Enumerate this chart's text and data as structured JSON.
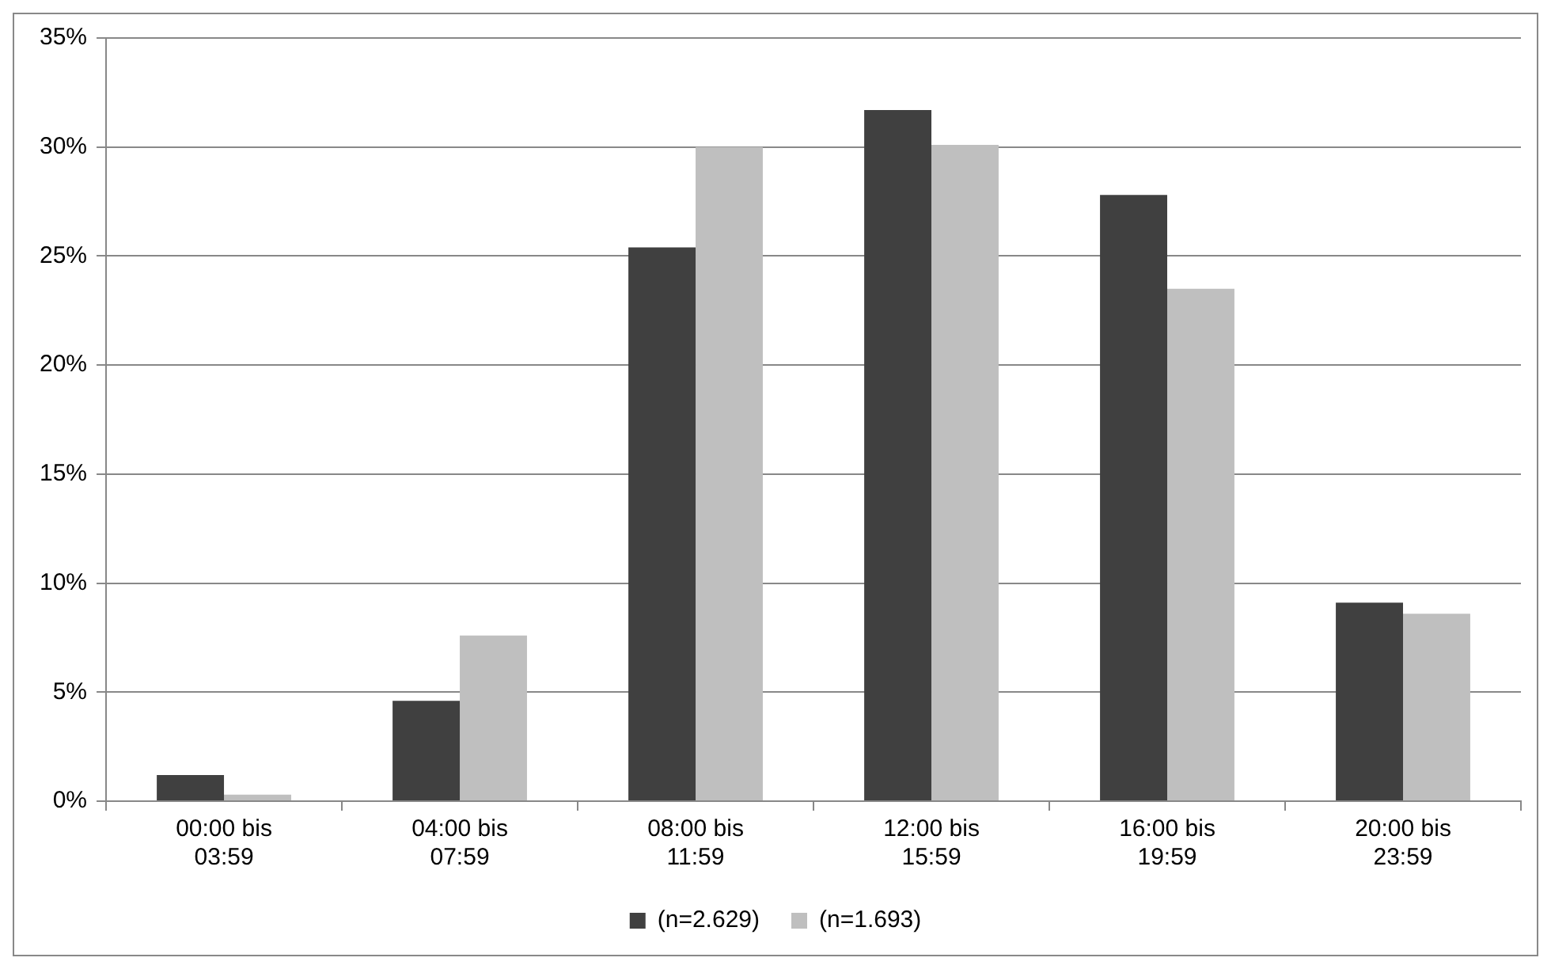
{
  "chart_data": {
    "type": "bar",
    "categories": [
      "00:00 bis 03:59",
      "04:00 bis 07:59",
      "08:00 bis 11:59",
      "12:00 bis 15:59",
      "16:00 bis 19:59",
      "20:00 bis 23:59"
    ],
    "series": [
      {
        "name": "(n=2.629)",
        "color": "#404040",
        "values": [
          1.2,
          4.6,
          25.4,
          31.7,
          27.8,
          9.1
        ]
      },
      {
        "name": "(n=1.693)",
        "color": "#bfbfbf",
        "values": [
          0.3,
          7.6,
          30.0,
          30.1,
          23.5,
          8.6
        ]
      }
    ],
    "ylim": [
      0,
      35
    ],
    "yticks": [
      {
        "value": 0,
        "label": "0%"
      },
      {
        "value": 5,
        "label": "5%"
      },
      {
        "value": 10,
        "label": "10%"
      },
      {
        "value": 15,
        "label": "15%"
      },
      {
        "value": 20,
        "label": "20%"
      },
      {
        "value": 25,
        "label": "25%"
      },
      {
        "value": 30,
        "label": "30%"
      },
      {
        "value": 35,
        "label": "35%"
      }
    ],
    "grid": "y",
    "legend": "bottom"
  }
}
